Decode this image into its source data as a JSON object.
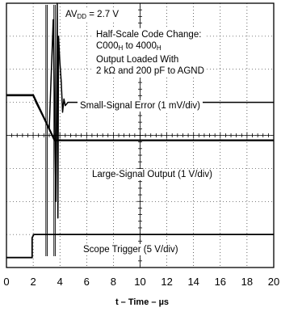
{
  "chart_data": {
    "type": "line",
    "x_axis": {
      "label_prefix": "t – Time – ",
      "label_unit": "µs",
      "min": 0,
      "max": 20,
      "ticks": [
        "0",
        "2",
        "4",
        "6",
        "8",
        "10",
        "12",
        "14",
        "16",
        "18",
        "20"
      ]
    },
    "grid": true,
    "annotations": {
      "supply": "AVDD = 2.7 V",
      "supply_main": "AV",
      "supply_sub": "DD",
      "supply_rest": " = 2.7 V",
      "code_line1": "Half-Scale Code Change:",
      "code_from_main": "C000",
      "code_from_sub": "H",
      "code_to_text": " to 4000",
      "code_to_sub": "H",
      "load_line1": "Output Loaded With",
      "load_line2": "2 kΩ and 200 pF to AGND"
    },
    "series": [
      {
        "name": "Small-Signal Error (1 mV/div)",
        "x": [
          0,
          2.0,
          2.2,
          3.2,
          3.5,
          3.7,
          3.8,
          3.85,
          3.9,
          4.0,
          4.1,
          4.2,
          4.3,
          4.4,
          4.6,
          4.8,
          5.0,
          6,
          20
        ],
        "y": [
          5.2,
          5.2,
          5.0,
          4.2,
          7.5,
          2.0,
          8.0,
          1.5,
          7.0,
          6.2,
          5.6,
          4.7,
          5.1,
          4.9,
          5.0,
          5.0,
          5.0,
          5.0,
          5.0
        ]
      },
      {
        "name": "Large-Signal Output (1 V/div)",
        "x": [
          0,
          2.0,
          3.6,
          4.0,
          20
        ],
        "y": [
          5.22,
          5.22,
          3.85,
          3.85,
          3.85
        ]
      },
      {
        "name": "Scope Trigger (5 V/div)",
        "x": [
          0,
          1.92,
          1.92,
          2.05,
          20
        ],
        "y": [
          0.3,
          0.3,
          0.9,
          1.0,
          1.0
        ]
      }
    ],
    "glitch_spikes_x": [
      2.95,
      3.05,
      3.55,
      3.65
    ]
  }
}
